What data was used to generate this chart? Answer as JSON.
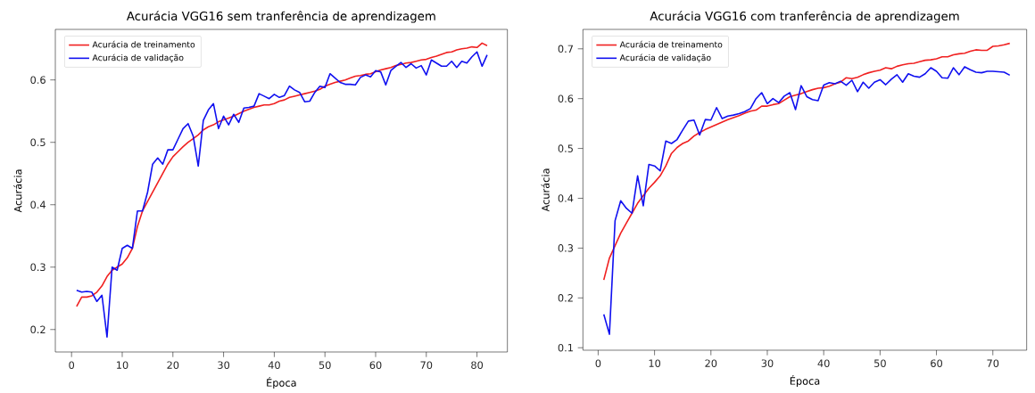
{
  "chart_data": [
    {
      "type": "line",
      "title": "Acurácia VGG16 sem tranferência de aprendizagem",
      "xlabel": "Época",
      "ylabel": "Acurácia",
      "xlim": [
        -3.2,
        86
      ],
      "ylim": [
        0.164,
        0.681
      ],
      "xticks": [
        0,
        10,
        20,
        30,
        40,
        50,
        60,
        70,
        80
      ],
      "yticks": [
        0.2,
        0.3,
        0.4,
        0.5,
        0.6
      ],
      "legend": "top left",
      "grid": false,
      "x": [
        1,
        2,
        3,
        4,
        5,
        6,
        7,
        8,
        9,
        10,
        11,
        12,
        13,
        14,
        15,
        16,
        17,
        18,
        19,
        20,
        21,
        22,
        23,
        24,
        25,
        26,
        27,
        28,
        29,
        30,
        31,
        32,
        33,
        34,
        35,
        36,
        37,
        38,
        39,
        40,
        41,
        42,
        43,
        44,
        45,
        46,
        47,
        48,
        49,
        50,
        51,
        52,
        53,
        54,
        55,
        56,
        57,
        58,
        59,
        60,
        61,
        62,
        63,
        64,
        65,
        66,
        67,
        68,
        69,
        70,
        71,
        72,
        73,
        74,
        75,
        76,
        77,
        78,
        79,
        80,
        81,
        82
      ],
      "series": [
        {
          "name": "Acurácia de treinamento",
          "color": "#f02020",
          "values": [
            0.237,
            0.252,
            0.252,
            0.254,
            0.26,
            0.27,
            0.285,
            0.295,
            0.3,
            0.305,
            0.315,
            0.33,
            0.365,
            0.39,
            0.405,
            0.42,
            0.435,
            0.45,
            0.465,
            0.477,
            0.485,
            0.493,
            0.5,
            0.506,
            0.512,
            0.52,
            0.525,
            0.528,
            0.533,
            0.536,
            0.539,
            0.542,
            0.546,
            0.55,
            0.553,
            0.556,
            0.558,
            0.56,
            0.56,
            0.562,
            0.566,
            0.568,
            0.572,
            0.574,
            0.576,
            0.578,
            0.58,
            0.582,
            0.585,
            0.59,
            0.593,
            0.596,
            0.598,
            0.6,
            0.603,
            0.606,
            0.607,
            0.609,
            0.61,
            0.613,
            0.616,
            0.618,
            0.62,
            0.623,
            0.625,
            0.627,
            0.628,
            0.63,
            0.632,
            0.633,
            0.636,
            0.638,
            0.641,
            0.644,
            0.645,
            0.648,
            0.65,
            0.651,
            0.653,
            0.652,
            0.659,
            0.655
          ]
        },
        {
          "name": "Acurácia de validação",
          "color": "#1010f0",
          "values": [
            0.263,
            0.26,
            0.261,
            0.26,
            0.245,
            0.255,
            0.188,
            0.3,
            0.295,
            0.33,
            0.335,
            0.33,
            0.39,
            0.39,
            0.42,
            0.465,
            0.475,
            0.465,
            0.488,
            0.488,
            0.505,
            0.522,
            0.53,
            0.51,
            0.462,
            0.535,
            0.552,
            0.562,
            0.522,
            0.542,
            0.528,
            0.545,
            0.532,
            0.555,
            0.556,
            0.558,
            0.578,
            0.574,
            0.57,
            0.577,
            0.572,
            0.575,
            0.59,
            0.584,
            0.58,
            0.565,
            0.566,
            0.58,
            0.59,
            0.588,
            0.61,
            0.603,
            0.596,
            0.593,
            0.593,
            0.592,
            0.604,
            0.608,
            0.605,
            0.615,
            0.613,
            0.592,
            0.615,
            0.622,
            0.628,
            0.62,
            0.626,
            0.619,
            0.623,
            0.608,
            0.632,
            0.627,
            0.622,
            0.622,
            0.63,
            0.62,
            0.63,
            0.627,
            0.637,
            0.645,
            0.622,
            0.64
          ]
        }
      ]
    },
    {
      "type": "line",
      "title": "Acurácia VGG16 com tranferência de aprendizagem",
      "xlabel": "Época",
      "ylabel": "Acurácia",
      "xlim": [
        -2.7,
        76
      ],
      "ylim": [
        0.095,
        0.739
      ],
      "xticks": [
        0,
        10,
        20,
        30,
        40,
        50,
        60,
        70
      ],
      "yticks": [
        0.1,
        0.2,
        0.3,
        0.4,
        0.5,
        0.6,
        0.7
      ],
      "legend": "top left",
      "grid": false,
      "x": [
        1,
        2,
        3,
        4,
        5,
        6,
        7,
        8,
        9,
        10,
        11,
        12,
        13,
        14,
        15,
        16,
        17,
        18,
        19,
        20,
        21,
        22,
        23,
        24,
        25,
        26,
        27,
        28,
        29,
        30,
        31,
        32,
        33,
        34,
        35,
        36,
        37,
        38,
        39,
        40,
        41,
        42,
        43,
        44,
        45,
        46,
        47,
        48,
        49,
        50,
        51,
        52,
        53,
        54,
        55,
        56,
        57,
        58,
        59,
        60,
        61,
        62,
        63,
        64,
        65,
        66,
        67,
        68,
        69,
        70,
        71,
        72,
        73
      ],
      "series": [
        {
          "name": "Acurácia de treinamento",
          "color": "#f02020",
          "values": [
            0.236,
            0.28,
            0.305,
            0.33,
            0.35,
            0.37,
            0.39,
            0.405,
            0.42,
            0.432,
            0.445,
            0.465,
            0.49,
            0.502,
            0.51,
            0.515,
            0.525,
            0.532,
            0.538,
            0.543,
            0.548,
            0.553,
            0.558,
            0.562,
            0.566,
            0.571,
            0.575,
            0.577,
            0.585,
            0.585,
            0.588,
            0.59,
            0.597,
            0.604,
            0.607,
            0.61,
            0.614,
            0.618,
            0.621,
            0.622,
            0.625,
            0.63,
            0.633,
            0.642,
            0.64,
            0.643,
            0.648,
            0.652,
            0.655,
            0.657,
            0.662,
            0.66,
            0.665,
            0.668,
            0.67,
            0.671,
            0.674,
            0.677,
            0.678,
            0.68,
            0.684,
            0.684,
            0.688,
            0.69,
            0.691,
            0.695,
            0.698,
            0.697,
            0.697,
            0.705,
            0.706,
            0.708,
            0.711
          ]
        },
        {
          "name": "Acurácia de validação",
          "color": "#1010f0",
          "values": [
            0.167,
            0.127,
            0.355,
            0.395,
            0.38,
            0.37,
            0.445,
            0.385,
            0.468,
            0.465,
            0.455,
            0.515,
            0.51,
            0.518,
            0.537,
            0.555,
            0.557,
            0.527,
            0.558,
            0.557,
            0.582,
            0.56,
            0.565,
            0.567,
            0.57,
            0.574,
            0.58,
            0.6,
            0.612,
            0.59,
            0.6,
            0.592,
            0.605,
            0.612,
            0.578,
            0.626,
            0.604,
            0.598,
            0.596,
            0.627,
            0.632,
            0.63,
            0.635,
            0.627,
            0.637,
            0.614,
            0.633,
            0.621,
            0.633,
            0.638,
            0.628,
            0.639,
            0.648,
            0.633,
            0.65,
            0.645,
            0.643,
            0.65,
            0.662,
            0.655,
            0.642,
            0.641,
            0.662,
            0.648,
            0.664,
            0.658,
            0.653,
            0.652,
            0.655,
            0.655,
            0.654,
            0.653,
            0.647
          ]
        }
      ]
    }
  ]
}
